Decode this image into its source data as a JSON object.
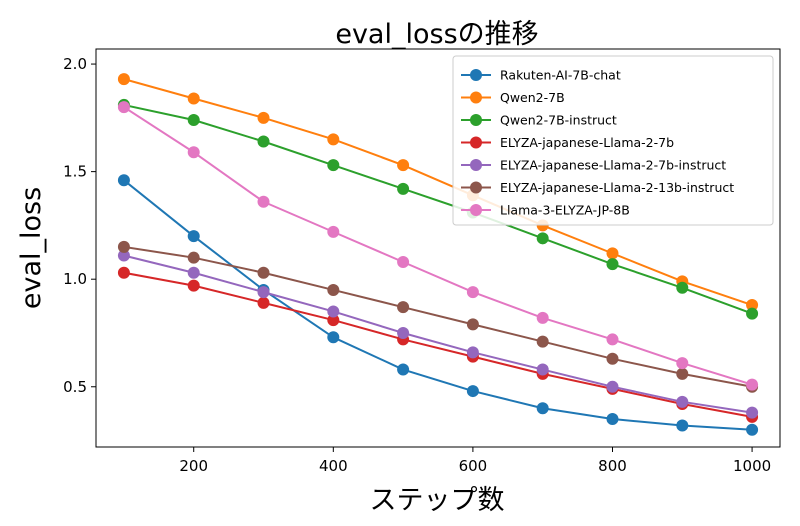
{
  "chart_data": {
    "type": "line",
    "title": "eval_lossの推移",
    "xlabel": "ステップ数",
    "ylabel": "eval_loss",
    "x": [
      100,
      200,
      300,
      400,
      500,
      600,
      700,
      800,
      900,
      1000
    ],
    "xlim": [
      60,
      1040
    ],
    "ylim": [
      0.22,
      2.07
    ],
    "xticks": [
      200,
      400,
      600,
      800,
      1000
    ],
    "yticks": [
      0.5,
      1.0,
      1.5,
      2.0
    ],
    "ytick_labels": [
      "0.5",
      "1.0",
      "1.5",
      "2.0"
    ],
    "legend_position": "top-right",
    "grid": false,
    "series": [
      {
        "name": "Rakuten-AI-7B-chat",
        "color": "#1f77b4",
        "values": [
          1.46,
          1.2,
          0.95,
          0.73,
          0.58,
          0.48,
          0.4,
          0.35,
          0.32,
          0.3
        ]
      },
      {
        "name": "Qwen2-7B",
        "color": "#ff7f0e",
        "values": [
          1.93,
          1.84,
          1.75,
          1.65,
          1.53,
          1.39,
          1.25,
          1.12,
          0.99,
          0.88
        ]
      },
      {
        "name": "Qwen2-7B-instruct",
        "color": "#2ca02c",
        "values": [
          1.81,
          1.74,
          1.64,
          1.53,
          1.42,
          1.31,
          1.19,
          1.07,
          0.96,
          0.84
        ]
      },
      {
        "name": "ELYZA-japanese-Llama-2-7b",
        "color": "#d62728",
        "values": [
          1.03,
          0.97,
          0.89,
          0.81,
          0.72,
          0.64,
          0.56,
          0.49,
          0.42,
          0.36
        ]
      },
      {
        "name": "ELYZA-japanese-Llama-2-7b-instruct",
        "color": "#9467bd",
        "values": [
          1.11,
          1.03,
          0.94,
          0.85,
          0.75,
          0.66,
          0.58,
          0.5,
          0.43,
          0.38
        ]
      },
      {
        "name": "ELYZA-japanese-Llama-2-13b-instruct",
        "color": "#8c564b",
        "values": [
          1.15,
          1.1,
          1.03,
          0.95,
          0.87,
          0.79,
          0.71,
          0.63,
          0.56,
          0.5
        ]
      },
      {
        "name": "Llama-3-ELYZA-JP-8B",
        "color": "#e377c2",
        "values": [
          1.8,
          1.59,
          1.36,
          1.22,
          1.08,
          0.94,
          0.82,
          0.72,
          0.61,
          0.51
        ]
      }
    ]
  }
}
